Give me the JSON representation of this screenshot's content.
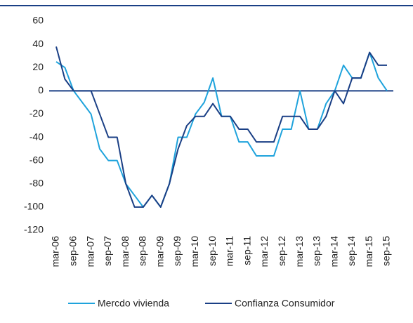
{
  "chart_data": {
    "type": "line",
    "categories": [
      "mar-06",
      null,
      "sep-06",
      null,
      "mar-07",
      null,
      "sep-07",
      null,
      "mar-08",
      null,
      "sep-08",
      null,
      "mar-09",
      null,
      "sep-09",
      null,
      "mar-10",
      null,
      "sep-10",
      null,
      "mar-11",
      null,
      "sep-11",
      null,
      "mar-12",
      null,
      "sep-12",
      null,
      "mar-13",
      null,
      "sep-13",
      null,
      "mar-14",
      null,
      "sep-14",
      null,
      "mar-15",
      null,
      "sep-15"
    ],
    "series": [
      {
        "name": "Mercdo vivienda",
        "color": "#1fa3dc",
        "values": [
          25,
          20,
          0,
          -10,
          -20,
          -50,
          -60,
          -60,
          -80,
          -90,
          -100,
          -90,
          -100,
          -80,
          -40,
          -40,
          -20,
          -10,
          11,
          -22,
          -22,
          -44,
          -44,
          -56,
          -56,
          -56,
          -33,
          -33,
          0,
          -33,
          -33,
          -11,
          0,
          22,
          11,
          11,
          33,
          11,
          0
        ]
      },
      {
        "name": "Confianza Consumidor",
        "color": "#1a3f85",
        "values": [
          38,
          10,
          0,
          0,
          0,
          -20,
          -40,
          -40,
          -80,
          -100,
          -100,
          -90,
          -100,
          -80,
          -50,
          -30,
          -22,
          -22,
          -11,
          -22,
          -22,
          -33,
          -33,
          -44,
          -44,
          -44,
          -22,
          -22,
          -22,
          -33,
          -33,
          -22,
          0,
          -11,
          11,
          11,
          33,
          22,
          22
        ]
      }
    ],
    "ylim": [
      -120,
      60
    ],
    "yticks": [
      -120,
      -100,
      -80,
      -60,
      -40,
      -20,
      0,
      20,
      40,
      60
    ],
    "grid": false,
    "legend": "bottom"
  }
}
